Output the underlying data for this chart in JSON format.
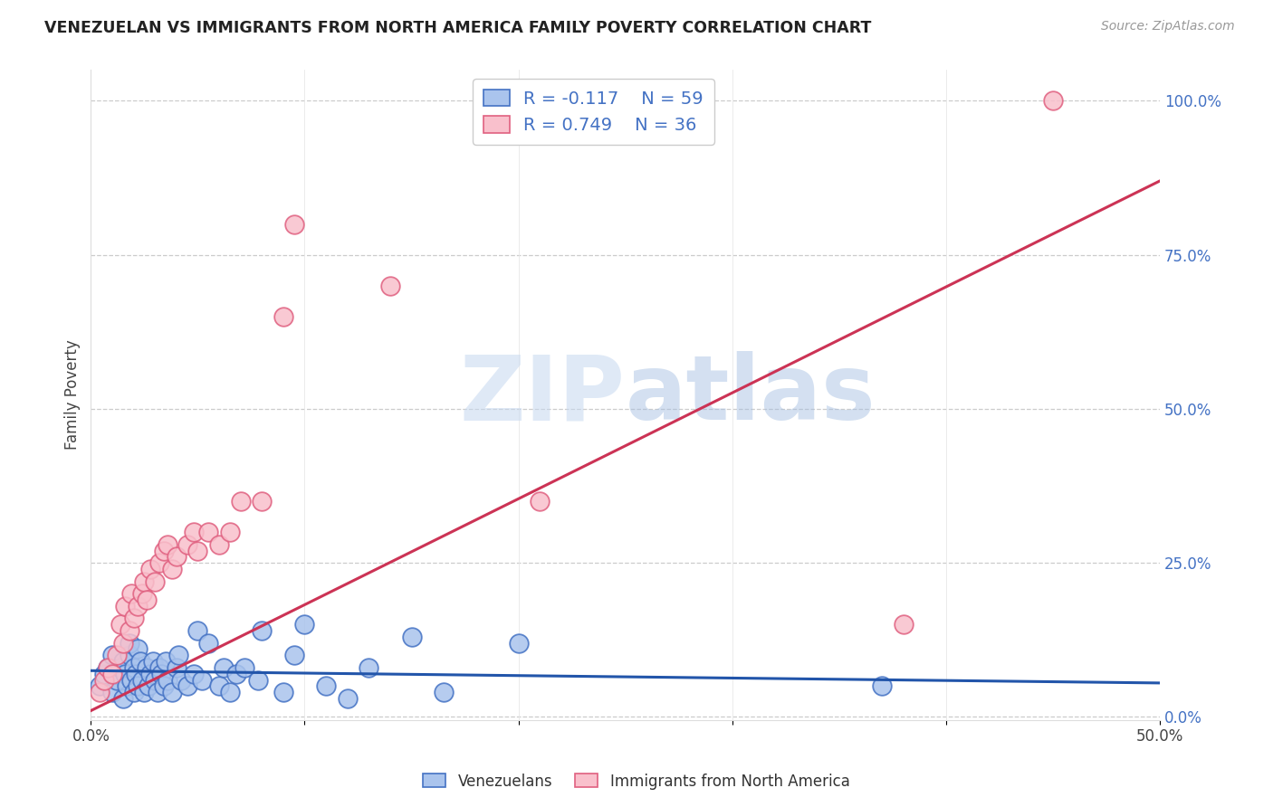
{
  "title": "VENEZUELAN VS IMMIGRANTS FROM NORTH AMERICA FAMILY POVERTY CORRELATION CHART",
  "source": "Source: ZipAtlas.com",
  "ylabel": "Family Poverty",
  "xlim": [
    0.0,
    0.5
  ],
  "ylim": [
    -0.005,
    1.05
  ],
  "x_ticks": [
    0.0,
    0.1,
    0.2,
    0.3,
    0.4,
    0.5
  ],
  "x_tick_labels": [
    "0.0%",
    "",
    "",
    "",
    "",
    "50.0%"
  ],
  "y_tick_labels_right": [
    "100.0%",
    "75.0%",
    "50.0%",
    "25.0%",
    "0.0%"
  ],
  "y_tick_vals_right": [
    1.0,
    0.75,
    0.5,
    0.25,
    0.0
  ],
  "blue_fill": "#aac4ed",
  "blue_edge": "#4472c4",
  "pink_fill": "#f9c0cc",
  "pink_edge": "#e06080",
  "blue_line_color": "#2255aa",
  "pink_line_color": "#cc3355",
  "legend_label_blue": "Venezuelans",
  "legend_label_pink": "Immigrants from North America",
  "watermark_zip": "ZIP",
  "watermark_atlas": "atlas",
  "blue_r": "-0.117",
  "blue_n": "59",
  "pink_r": "0.749",
  "pink_n": "36",
  "venezuelan_x": [
    0.004,
    0.006,
    0.008,
    0.01,
    0.01,
    0.012,
    0.014,
    0.015,
    0.015,
    0.016,
    0.017,
    0.018,
    0.018,
    0.019,
    0.02,
    0.02,
    0.021,
    0.022,
    0.022,
    0.023,
    0.024,
    0.025,
    0.026,
    0.027,
    0.028,
    0.029,
    0.03,
    0.031,
    0.032,
    0.033,
    0.034,
    0.035,
    0.036,
    0.038,
    0.04,
    0.041,
    0.042,
    0.045,
    0.048,
    0.05,
    0.052,
    0.055,
    0.06,
    0.062,
    0.065,
    0.068,
    0.072,
    0.078,
    0.08,
    0.09,
    0.095,
    0.1,
    0.11,
    0.12,
    0.13,
    0.15,
    0.165,
    0.2,
    0.37
  ],
  "venezuelan_y": [
    0.05,
    0.07,
    0.08,
    0.04,
    0.1,
    0.06,
    0.08,
    0.03,
    0.09,
    0.07,
    0.05,
    0.1,
    0.12,
    0.06,
    0.04,
    0.08,
    0.07,
    0.05,
    0.11,
    0.09,
    0.06,
    0.04,
    0.08,
    0.05,
    0.07,
    0.09,
    0.06,
    0.04,
    0.08,
    0.07,
    0.05,
    0.09,
    0.06,
    0.04,
    0.08,
    0.1,
    0.06,
    0.05,
    0.07,
    0.14,
    0.06,
    0.12,
    0.05,
    0.08,
    0.04,
    0.07,
    0.08,
    0.06,
    0.14,
    0.04,
    0.1,
    0.15,
    0.05,
    0.03,
    0.08,
    0.13,
    0.04,
    0.12,
    0.05
  ],
  "northam_x": [
    0.004,
    0.006,
    0.008,
    0.01,
    0.012,
    0.014,
    0.015,
    0.016,
    0.018,
    0.019,
    0.02,
    0.022,
    0.024,
    0.025,
    0.026,
    0.028,
    0.03,
    0.032,
    0.034,
    0.036,
    0.038,
    0.04,
    0.045,
    0.048,
    0.05,
    0.055,
    0.06,
    0.065,
    0.07,
    0.08,
    0.09,
    0.095,
    0.14,
    0.21,
    0.38,
    0.45
  ],
  "northam_y": [
    0.04,
    0.06,
    0.08,
    0.07,
    0.1,
    0.15,
    0.12,
    0.18,
    0.14,
    0.2,
    0.16,
    0.18,
    0.2,
    0.22,
    0.19,
    0.24,
    0.22,
    0.25,
    0.27,
    0.28,
    0.24,
    0.26,
    0.28,
    0.3,
    0.27,
    0.3,
    0.28,
    0.3,
    0.35,
    0.35,
    0.65,
    0.8,
    0.7,
    0.35,
    0.15,
    1.0
  ],
  "blue_line_x0": 0.0,
  "blue_line_x1": 0.5,
  "blue_line_y0": 0.075,
  "blue_line_y1": 0.055,
  "pink_line_x0": 0.0,
  "pink_line_x1": 0.5,
  "pink_line_y0": 0.01,
  "pink_line_y1": 0.87
}
